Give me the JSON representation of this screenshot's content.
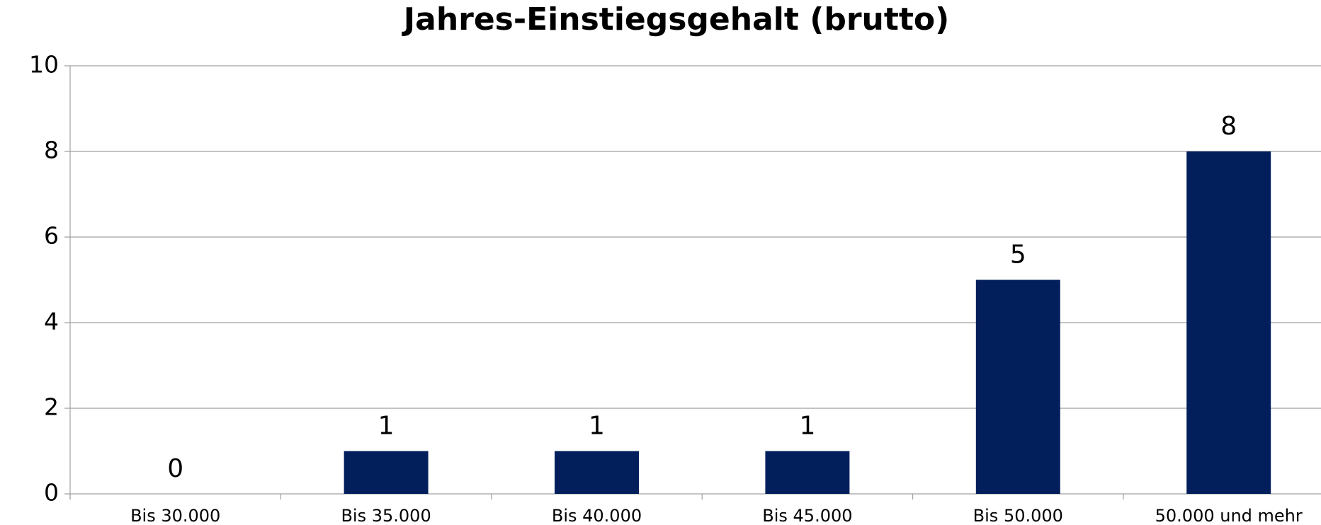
{
  "chart_data": {
    "type": "bar",
    "title": "Jahres-Einstiegsgehalt (brutto)",
    "categories": [
      "Bis 30.000",
      "Bis 35.000",
      "Bis 40.000",
      "Bis 45.000",
      "Bis 50.000",
      "50.000 und mehr"
    ],
    "values": [
      0,
      1,
      1,
      1,
      5,
      8
    ],
    "color": "#021f5c",
    "ylim": [
      0,
      10
    ],
    "yticks": [
      0,
      2,
      4,
      6,
      8,
      10
    ],
    "grid": true
  }
}
